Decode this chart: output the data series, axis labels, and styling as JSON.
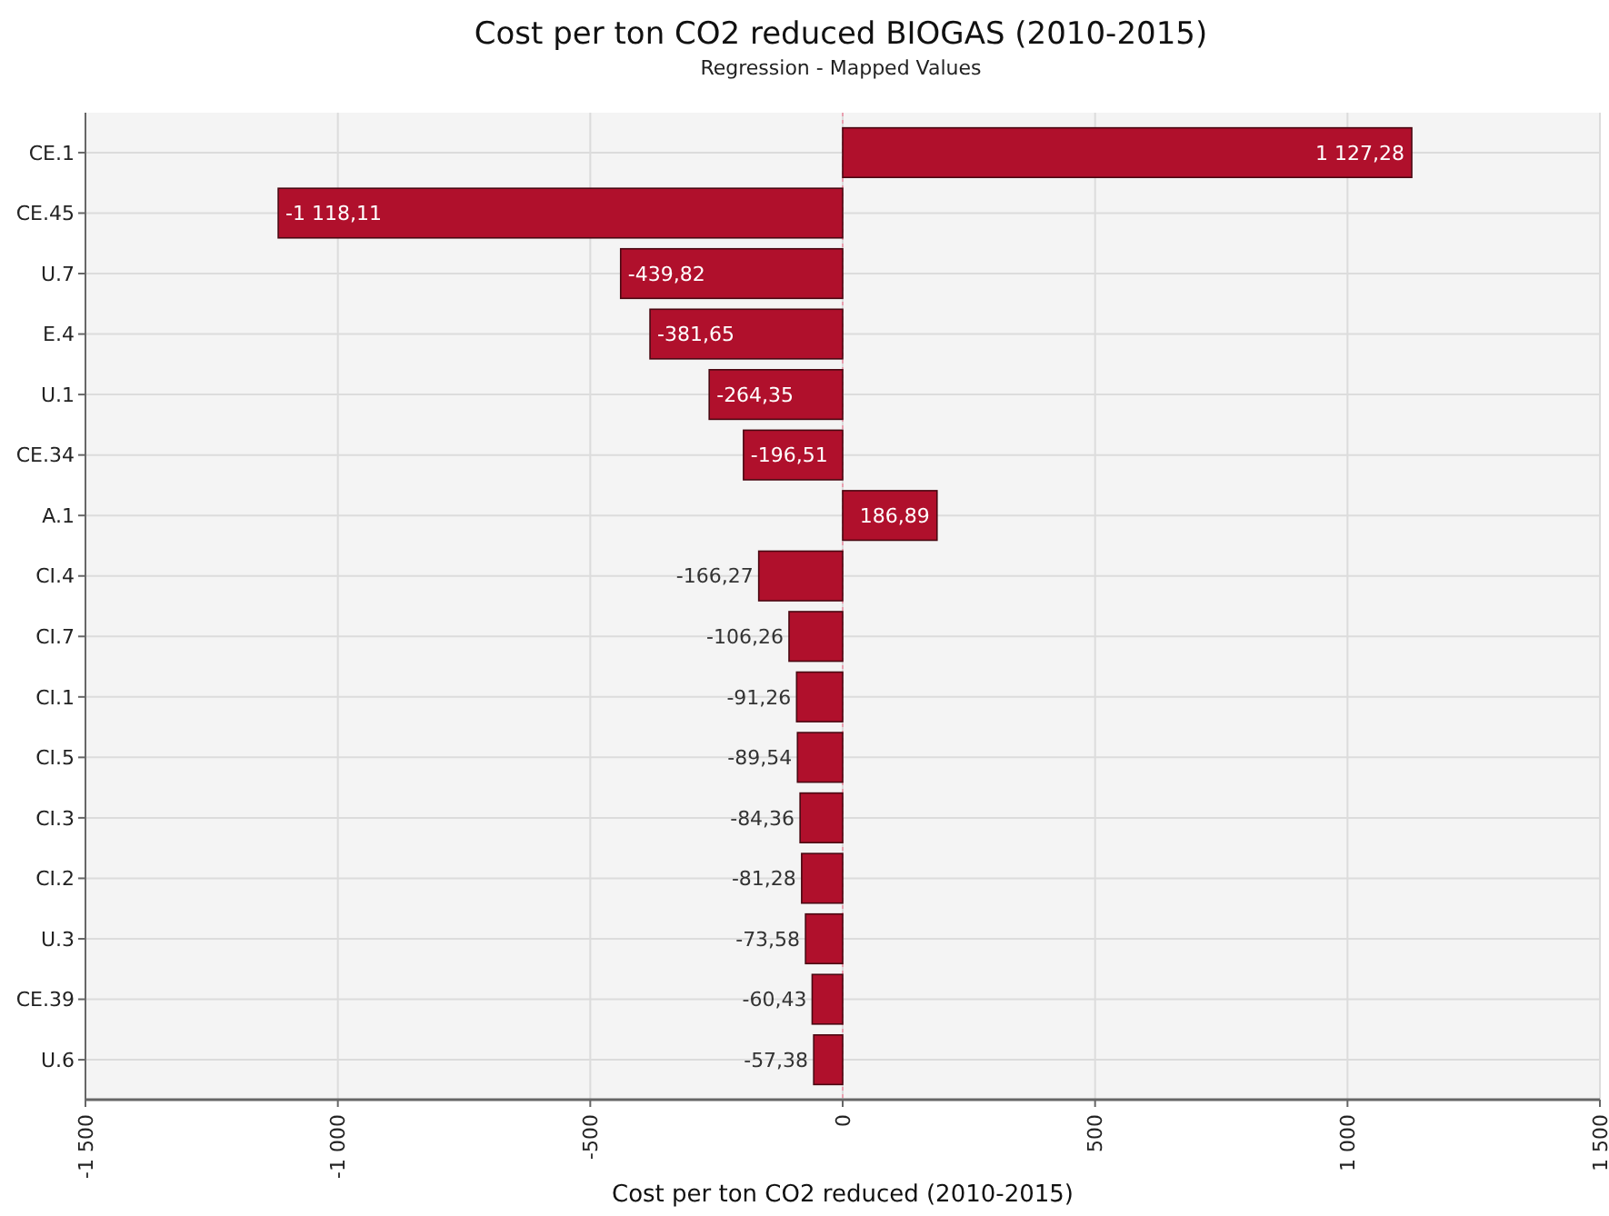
{
  "chart_data": {
    "type": "bar",
    "orientation": "horizontal",
    "title": "Cost per ton CO2 reduced BIOGAS (2010-2015)",
    "subtitle": "Regression - Mapped Values",
    "xlabel": "Cost per ton CO2 reduced (2010-2015)",
    "categories": [
      "CE.1",
      "CE.45",
      "U.7",
      "E.4",
      "U.1",
      "CE.34",
      "A.1",
      "CI.4",
      "CI.7",
      "CI.1",
      "CI.5",
      "CI.3",
      "CI.2",
      "U.3",
      "CE.39",
      "U.6"
    ],
    "values": [
      1127.28,
      -1118.11,
      -439.82,
      -381.65,
      -264.35,
      -196.51,
      186.89,
      -166.27,
      -106.26,
      -91.26,
      -89.54,
      -84.36,
      -81.28,
      -73.58,
      -60.43,
      -57.38
    ],
    "value_labels": [
      "1 127,28",
      "-1 118,11",
      "-439,82",
      "-381,65",
      "-264,35",
      "-196,51",
      "186,89",
      "-166,27",
      "-106,26",
      "-91,26",
      "-89,54",
      "-84,36",
      "-81,28",
      "-73,58",
      "-60,43",
      "-57,38"
    ],
    "color": "#b0102c",
    "xlim": [
      -1500,
      1500
    ],
    "xticks": [
      {
        "value": -1500,
        "label": "-1 500"
      },
      {
        "value": -1000,
        "label": "-1 000"
      },
      -500,
      0,
      500,
      {
        "value": 1000,
        "label": "1 000"
      },
      {
        "value": 1500,
        "label": "1 500"
      }
    ],
    "ref_lines": [
      {
        "axis": "x",
        "value": 0,
        "color": "#e8a0b0",
        "line_style": "dotted"
      }
    ],
    "grid": true
  }
}
